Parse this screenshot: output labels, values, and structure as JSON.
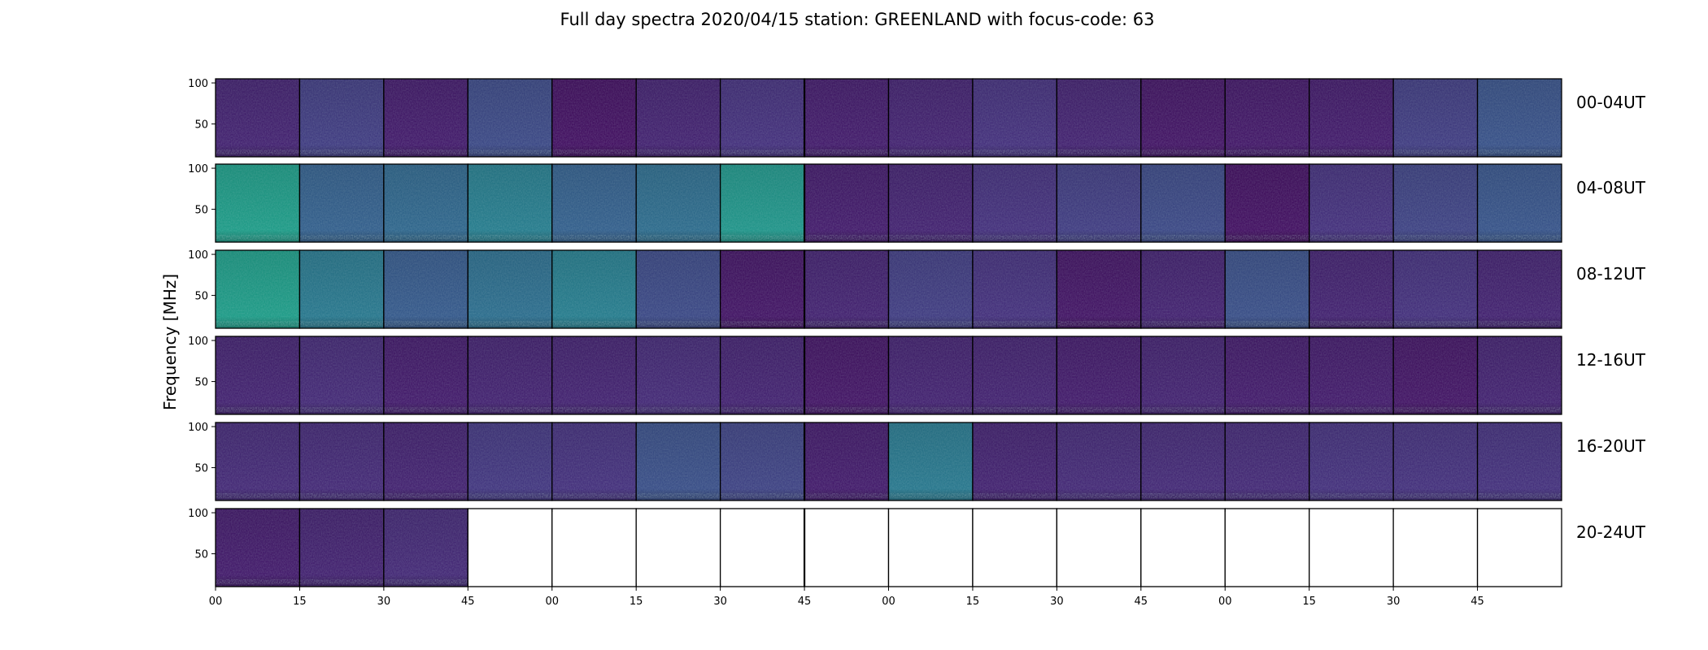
{
  "chart_data": {
    "type": "heatmap",
    "title": "Full day spectra 2020/04/15 station: GREENLAND with focus-code: 63",
    "ylabel": "Frequency [MHz]",
    "xlabel": "",
    "y_ticks": [
      100,
      50
    ],
    "ylim": [
      10,
      105
    ],
    "x_tick_labels": [
      "00",
      "15",
      "30",
      "45",
      "00",
      "15",
      "30",
      "45",
      "00",
      "15",
      "30",
      "45",
      "00",
      "15",
      "30",
      "45"
    ],
    "panels_per_row": 16,
    "panel_duration_minutes": 15,
    "rows": [
      {
        "label": "00-04UT",
        "panels_with_data": 16
      },
      {
        "label": "04-08UT",
        "panels_with_data": 16
      },
      {
        "label": "08-12UT",
        "panels_with_data": 16
      },
      {
        "label": "12-16UT",
        "panels_with_data": 16
      },
      {
        "label": "16-20UT",
        "panels_with_data": 16
      },
      {
        "label": "20-24UT",
        "panels_with_data": 3
      }
    ],
    "colormap": [
      "#440154",
      "#46327e",
      "#365c8d",
      "#277f8e",
      "#1fa187",
      "#4ac16d",
      "#a0da39",
      "#fde725"
    ],
    "panel_intensity": [
      [
        0.1,
        0.18,
        0.08,
        0.22,
        0.05,
        0.1,
        0.14,
        0.08,
        0.1,
        0.14,
        0.1,
        0.06,
        0.07,
        0.08,
        0.18,
        0.25
      ],
      [
        0.55,
        0.3,
        0.33,
        0.42,
        0.3,
        0.35,
        0.52,
        0.08,
        0.1,
        0.14,
        0.18,
        0.22,
        0.05,
        0.14,
        0.2,
        0.26
      ],
      [
        0.55,
        0.4,
        0.28,
        0.36,
        0.42,
        0.22,
        0.06,
        0.1,
        0.18,
        0.14,
        0.06,
        0.1,
        0.24,
        0.1,
        0.14,
        0.1
      ],
      [
        0.1,
        0.12,
        0.08,
        0.1,
        0.1,
        0.12,
        0.1,
        0.06,
        0.1,
        0.1,
        0.08,
        0.1,
        0.08,
        0.08,
        0.06,
        0.1
      ],
      [
        0.12,
        0.12,
        0.1,
        0.16,
        0.14,
        0.24,
        0.2,
        0.08,
        0.4,
        0.1,
        0.12,
        0.12,
        0.12,
        0.14,
        0.14,
        0.14
      ],
      [
        0.08,
        0.1,
        0.12,
        null,
        null,
        null,
        null,
        null,
        null,
        null,
        null,
        null,
        null,
        null,
        null,
        null
      ]
    ]
  }
}
